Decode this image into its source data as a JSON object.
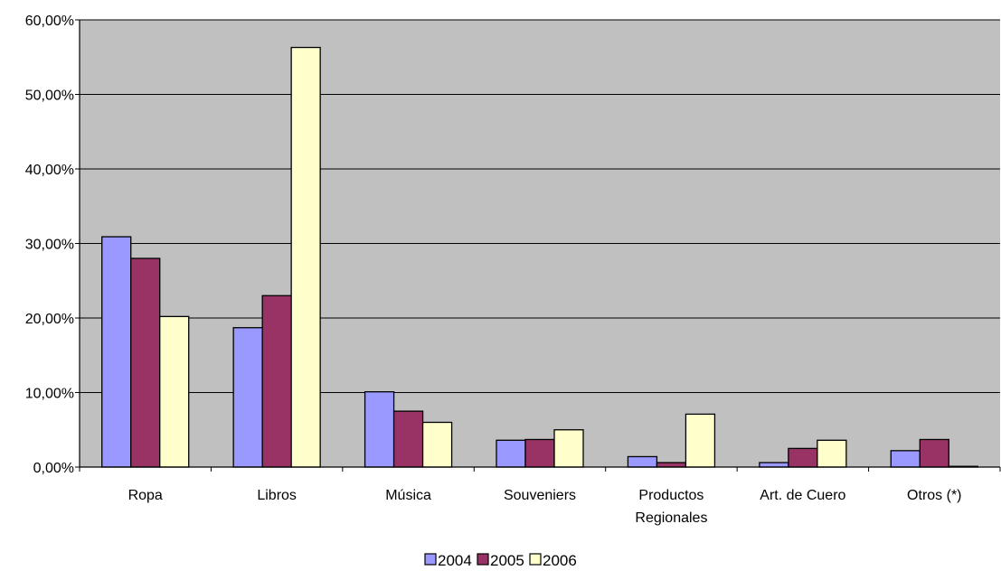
{
  "chart_data": {
    "type": "bar",
    "categories": [
      [
        "Ropa"
      ],
      [
        "Libros"
      ],
      [
        "Música"
      ],
      [
        "Souveniers"
      ],
      [
        "Productos",
        "Regionales"
      ],
      [
        "Art. de Cuero"
      ],
      [
        "Otros (*)"
      ]
    ],
    "series": [
      {
        "name": "2004",
        "color": "#9999ff",
        "values": [
          30.9,
          18.7,
          10.1,
          3.6,
          1.4,
          0.6,
          2.2
        ]
      },
      {
        "name": "2005",
        "color": "#993366",
        "values": [
          28.0,
          23.0,
          7.5,
          3.7,
          0.6,
          2.5,
          3.7
        ]
      },
      {
        "name": "2006",
        "color": "#ffffcc",
        "values": [
          20.2,
          56.3,
          6.0,
          5.0,
          7.1,
          3.6,
          0.1
        ]
      }
    ],
    "title": "",
    "xlabel": "",
    "ylabel": "",
    "ylim": [
      0,
      60
    ],
    "yticks": [
      {
        "value": 0,
        "label": "0,00%"
      },
      {
        "value": 10,
        "label": "10,00%"
      },
      {
        "value": 20,
        "label": "20,00%"
      },
      {
        "value": 30,
        "label": "30,00%"
      },
      {
        "value": 40,
        "label": "40,00%"
      },
      {
        "value": 50,
        "label": "50,00%"
      },
      {
        "value": 60,
        "label": "60,00%"
      }
    ],
    "grid": true,
    "plot_background": "#c0c0c0",
    "legend_position": "bottom"
  }
}
